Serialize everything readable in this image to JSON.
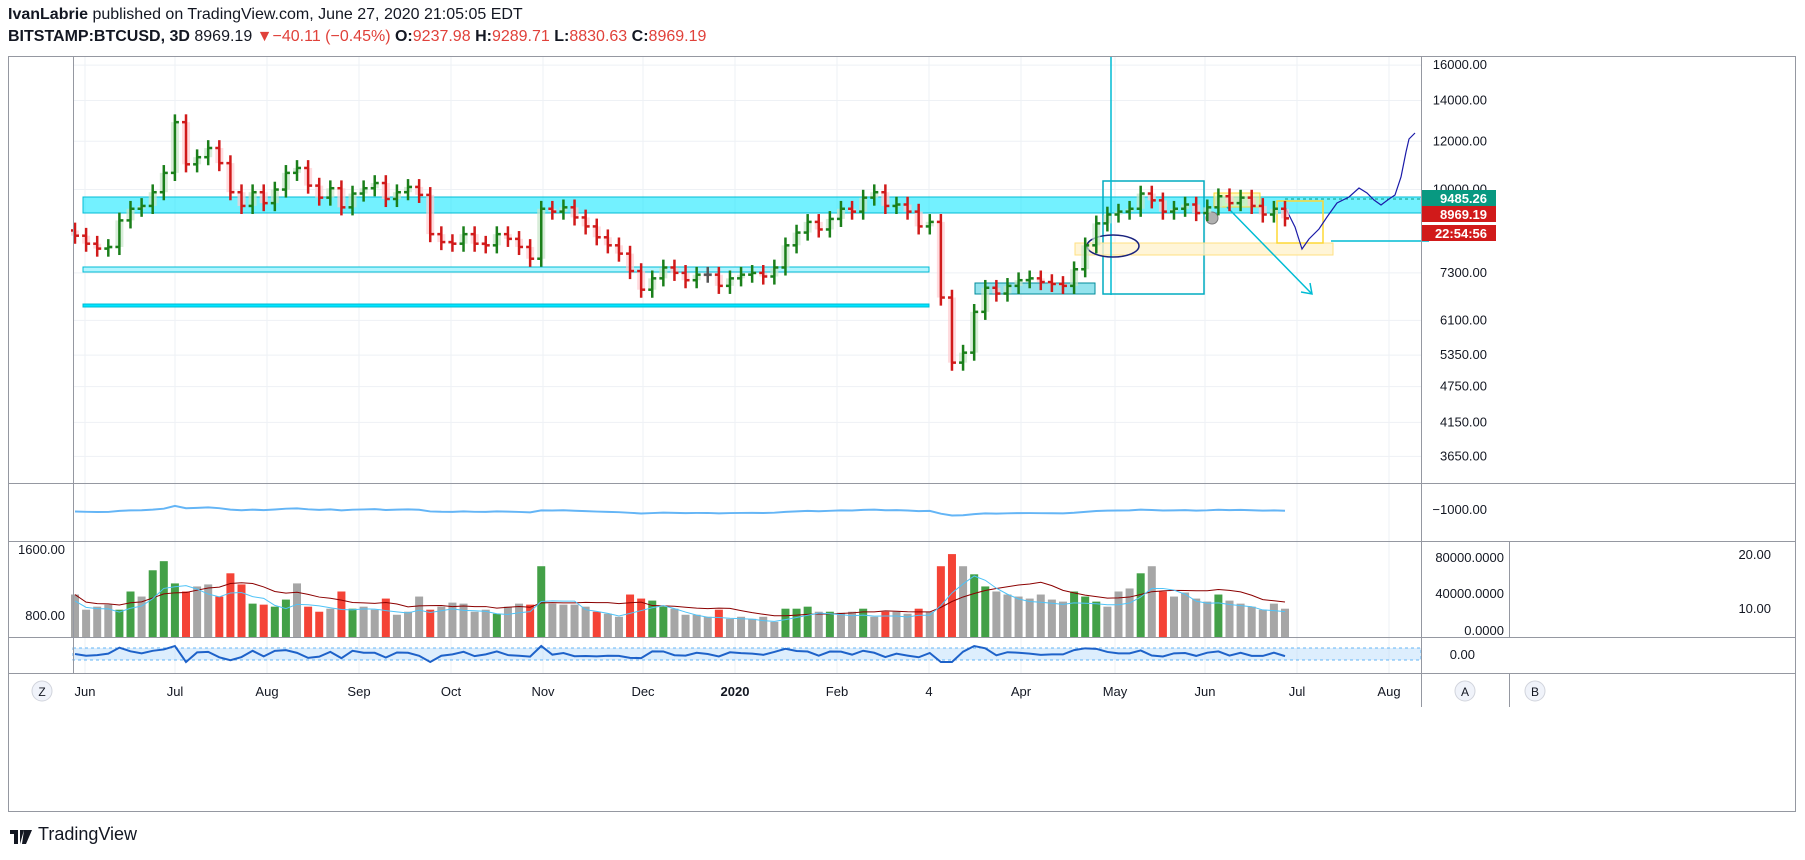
{
  "header": {
    "author": "IvanLabrie",
    "published_text": "published on TradingView.com, June 27, 2020 21:05:05 EDT",
    "symbol": "BITSTAMP:BTCUSD, 3D",
    "last": "8969.19",
    "change": "−40.11 (−0.45%)",
    "o_label": "O:",
    "o_value": "9237.98",
    "h_label": "H:",
    "h_value": "9289.71",
    "l_label": "L:",
    "l_value": "8830.63",
    "c_label": "C:",
    "c_value": "8969.19"
  },
  "brand": "TradingView",
  "buttons": {
    "z": "Z",
    "a": "A",
    "b": "B"
  },
  "colors": {
    "up": "#1a7f1a",
    "down": "#d11a1a",
    "neutral": "#555555",
    "zone": "#00e5ff",
    "blue_line": "#1565c0",
    "osc_line": "#64b5f6",
    "vol_gray": "#a6a6a6",
    "vol_green": "#43a047",
    "vol_red": "#f44336"
  },
  "chart_data": {
    "type": "ohlc-bar",
    "x_ticks": [
      "Jun",
      "Jul",
      "Aug",
      "Sep",
      "Oct",
      "Nov",
      "Dec",
      "2020",
      "Feb",
      "4",
      "Apr",
      "May",
      "Jun",
      "Jul",
      "Aug"
    ],
    "price_ticks": [
      "16000.00",
      "14000.00",
      "12000.00",
      "10000.00",
      "7300.00",
      "6100.00",
      "5350.00",
      "4750.00",
      "4150.00",
      "3650.00"
    ],
    "price_labels": [
      {
        "text": "9485.26",
        "color": "#089981"
      },
      {
        "text": "8969.19",
        "color": "#d11a1a"
      },
      {
        "text": "22:54:56",
        "color": "#d11a1a"
      }
    ],
    "osc1_tick": "−1000.00",
    "vol_left_ticks": [
      "1600.00",
      "800.00"
    ],
    "vol_mid_ticks": [
      "80000.0000",
      "40000.0000",
      "0.0000"
    ],
    "vol_right_ticks": [
      "20.00",
      "10.00"
    ],
    "osc2_tick": "0.00",
    "closes": [
      8400,
      8150,
      8000,
      8050,
      8900,
      9300,
      9400,
      9900,
      10650,
      12900,
      11000,
      11300,
      11700,
      11050,
      9900,
      9400,
      9900,
      9500,
      10000,
      10650,
      10850,
      10150,
      9700,
      10050,
      9350,
      9850,
      10050,
      10250,
      9650,
      9900,
      10100,
      9800,
      8450,
      8200,
      8150,
      8450,
      8150,
      8100,
      8450,
      8300,
      8050,
      7700,
      9300,
      9200,
      9350,
      9000,
      8700,
      8350,
      8100,
      7850,
      7350,
      6850,
      7150,
      7450,
      7300,
      7100,
      7250,
      7250,
      6950,
      7150,
      7250,
      7300,
      7200,
      7450,
      8100,
      8500,
      8850,
      8600,
      8950,
      9300,
      9200,
      9700,
      9900,
      9400,
      9450,
      9200,
      8700,
      8850,
      6650,
      5200,
      5400,
      6300,
      6900,
      6750,
      6950,
      7100,
      7150,
      7050,
      7000,
      6950,
      7400,
      8100,
      8800,
      9100,
      9200,
      9300,
      9850,
      9600,
      9200,
      9300,
      9450,
      9150,
      9350,
      9750,
      9500,
      9700,
      9400,
      9100,
      9300,
      8969
    ],
    "volumes": [
      42000,
      27000,
      30000,
      32000,
      27000,
      45000,
      40000,
      66000,
      75000,
      53000,
      45000,
      50000,
      52000,
      40000,
      63000,
      52000,
      33000,
      32000,
      30000,
      37000,
      53000,
      30000,
      25000,
      28000,
      45000,
      28000,
      30000,
      27000,
      38000,
      22000,
      25000,
      40000,
      27000,
      30000,
      34000,
      33000,
      25000,
      27000,
      23000,
      30000,
      33000,
      32000,
      70000,
      33000,
      32000,
      32000,
      30000,
      25000,
      23000,
      20000,
      42000,
      38000,
      36000,
      30000,
      28000,
      22000,
      22000,
      20000,
      27000,
      18000,
      20000,
      18000,
      20000,
      15000,
      28000,
      28000,
      30000,
      25000,
      25000,
      24000,
      25000,
      28000,
      20000,
      25000,
      25000,
      23000,
      28000,
      25000,
      70000,
      82000,
      70000,
      62000,
      50000,
      45000,
      42000,
      40000,
      38000,
      42000,
      37000,
      35000,
      45000,
      40000,
      35000,
      30000,
      45000,
      48000,
      63000,
      70000,
      45000,
      40000,
      44000,
      38000,
      35000,
      42000,
      36000,
      33000,
      30000,
      27000,
      33000,
      28000
    ],
    "x_domain": [
      "2020-05-28",
      "2020-08-15"
    ],
    "y_range": [
      3650,
      16000
    ],
    "y_scale": "log",
    "grid": true
  }
}
